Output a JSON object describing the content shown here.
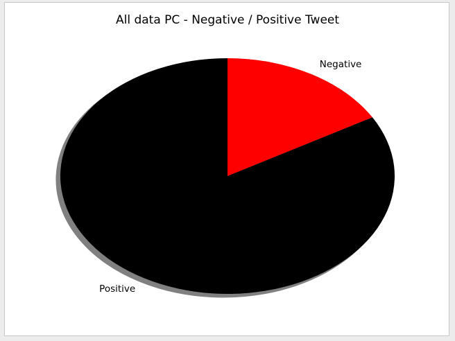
{
  "chart_data": {
    "type": "pie",
    "title": "All data PC - Negative / Positive  Tweet",
    "slices": [
      {
        "label": "Negative",
        "value": 16.7,
        "color": "#ff0000"
      },
      {
        "label": "Positive",
        "value": 83.3,
        "color": "#000000"
      }
    ],
    "start_angle_deg": 90,
    "direction": "clockwise",
    "shadow": true,
    "shadow_color": "#808080",
    "edge_color": "#000000"
  }
}
